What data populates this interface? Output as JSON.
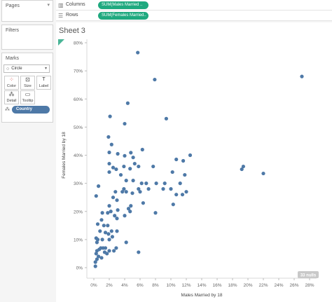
{
  "pages": {
    "title": "Pages"
  },
  "filters": {
    "title": "Filters"
  },
  "marks": {
    "title": "Marks",
    "mark_type": "Circle",
    "buttons": [
      {
        "label": "Color",
        "icon": "color-icon"
      },
      {
        "label": "Size",
        "icon": "size-icon"
      },
      {
        "label": "Label",
        "icon": "label-icon"
      },
      {
        "label": "Detail",
        "icon": "detail-icon"
      },
      {
        "label": "Tooltip",
        "icon": "tooltip-icon"
      }
    ],
    "detail_field": "Country"
  },
  "shelves": {
    "columns_label": "Columns",
    "columns_pill": "SUM(Males Married ..",
    "rows_label": "Rows",
    "rows_pill": "SUM(Females Married.."
  },
  "sheet": {
    "title": "Sheet 3",
    "nulls_badge": "33 nulls"
  },
  "colors": {
    "mark": "#4e79a7",
    "pill": "#1fa97f",
    "detail_pill": "#4e79a7"
  },
  "chart_data": {
    "type": "scatter",
    "xlabel": "Males Married by 18",
    "ylabel": "Females Married by 18",
    "xlim": [
      0,
      0.28
    ],
    "ylim": [
      0,
      0.8
    ],
    "x_ticks": [
      "0%",
      "2%",
      "4%",
      "6%",
      "8%",
      "10%",
      "12%",
      "14%",
      "16%",
      "18%",
      "20%",
      "22%",
      "24%",
      "26%",
      "28%"
    ],
    "y_ticks": [
      "0%",
      "10%",
      "20%",
      "30%",
      "40%",
      "50%",
      "60%",
      "70%",
      "80%"
    ],
    "grid": false,
    "points": [
      {
        "x": 0.057,
        "y": 0.765
      },
      {
        "x": 0.079,
        "y": 0.669
      },
      {
        "x": 0.27,
        "y": 0.68
      },
      {
        "x": 0.044,
        "y": 0.585
      },
      {
        "x": 0.094,
        "y": 0.53
      },
      {
        "x": 0.021,
        "y": 0.538
      },
      {
        "x": 0.04,
        "y": 0.512
      },
      {
        "x": 0.019,
        "y": 0.465
      },
      {
        "x": 0.023,
        "y": 0.438
      },
      {
        "x": 0.02,
        "y": 0.41
      },
      {
        "x": 0.048,
        "y": 0.409
      },
      {
        "x": 0.063,
        "y": 0.42
      },
      {
        "x": 0.031,
        "y": 0.405
      },
      {
        "x": 0.04,
        "y": 0.398
      },
      {
        "x": 0.051,
        "y": 0.392
      },
      {
        "x": 0.077,
        "y": 0.36
      },
      {
        "x": 0.058,
        "y": 0.36
      },
      {
        "x": 0.107,
        "y": 0.385
      },
      {
        "x": 0.116,
        "y": 0.38
      },
      {
        "x": 0.125,
        "y": 0.4
      },
      {
        "x": 0.194,
        "y": 0.36
      },
      {
        "x": 0.192,
        "y": 0.35
      },
      {
        "x": 0.22,
        "y": 0.335
      },
      {
        "x": 0.02,
        "y": 0.37
      },
      {
        "x": 0.025,
        "y": 0.356
      },
      {
        "x": 0.02,
        "y": 0.34
      },
      {
        "x": 0.029,
        "y": 0.35
      },
      {
        "x": 0.035,
        "y": 0.33
      },
      {
        "x": 0.039,
        "y": 0.36
      },
      {
        "x": 0.047,
        "y": 0.352
      },
      {
        "x": 0.053,
        "y": 0.37
      },
      {
        "x": 0.042,
        "y": 0.31
      },
      {
        "x": 0.051,
        "y": 0.31
      },
      {
        "x": 0.062,
        "y": 0.3
      },
      {
        "x": 0.068,
        "y": 0.3
      },
      {
        "x": 0.071,
        "y": 0.28
      },
      {
        "x": 0.081,
        "y": 0.3
      },
      {
        "x": 0.092,
        "y": 0.3
      },
      {
        "x": 0.102,
        "y": 0.34
      },
      {
        "x": 0.112,
        "y": 0.3
      },
      {
        "x": 0.118,
        "y": 0.33
      },
      {
        "x": 0.1,
        "y": 0.28
      },
      {
        "x": 0.09,
        "y": 0.28
      },
      {
        "x": 0.037,
        "y": 0.27
      },
      {
        "x": 0.039,
        "y": 0.28
      },
      {
        "x": 0.028,
        "y": 0.27
      },
      {
        "x": 0.025,
        "y": 0.25
      },
      {
        "x": 0.03,
        "y": 0.24
      },
      {
        "x": 0.042,
        "y": 0.27
      },
      {
        "x": 0.05,
        "y": 0.265
      },
      {
        "x": 0.058,
        "y": 0.28
      },
      {
        "x": 0.06,
        "y": 0.27
      },
      {
        "x": 0.006,
        "y": 0.29
      },
      {
        "x": 0.003,
        "y": 0.255
      },
      {
        "x": 0.107,
        "y": 0.26
      },
      {
        "x": 0.115,
        "y": 0.26
      },
      {
        "x": 0.12,
        "y": 0.27
      },
      {
        "x": 0.064,
        "y": 0.23
      },
      {
        "x": 0.103,
        "y": 0.225
      },
      {
        "x": 0.08,
        "y": 0.195
      },
      {
        "x": 0.045,
        "y": 0.21
      },
      {
        "x": 0.048,
        "y": 0.22
      },
      {
        "x": 0.047,
        "y": 0.2
      },
      {
        "x": 0.04,
        "y": 0.185
      },
      {
        "x": 0.031,
        "y": 0.205
      },
      {
        "x": 0.027,
        "y": 0.185
      },
      {
        "x": 0.02,
        "y": 0.22
      },
      {
        "x": 0.022,
        "y": 0.2
      },
      {
        "x": 0.018,
        "y": 0.195
      },
      {
        "x": 0.011,
        "y": 0.195
      },
      {
        "x": 0.01,
        "y": 0.17
      },
      {
        "x": 0.013,
        "y": 0.15
      },
      {
        "x": 0.018,
        "y": 0.15
      },
      {
        "x": 0.03,
        "y": 0.175
      },
      {
        "x": 0.005,
        "y": 0.155
      },
      {
        "x": 0.008,
        "y": 0.13
      },
      {
        "x": 0.015,
        "y": 0.125
      },
      {
        "x": 0.019,
        "y": 0.12
      },
      {
        "x": 0.023,
        "y": 0.13
      },
      {
        "x": 0.03,
        "y": 0.13
      },
      {
        "x": 0.003,
        "y": 0.105
      },
      {
        "x": 0.004,
        "y": 0.09
      },
      {
        "x": 0.005,
        "y": 0.1
      },
      {
        "x": 0.011,
        "y": 0.1
      },
      {
        "x": 0.02,
        "y": 0.1
      },
      {
        "x": 0.024,
        "y": 0.11
      },
      {
        "x": 0.042,
        "y": 0.09
      },
      {
        "x": 0.058,
        "y": 0.055
      },
      {
        "x": 0.029,
        "y": 0.07
      },
      {
        "x": 0.026,
        "y": 0.06
      },
      {
        "x": 0.02,
        "y": 0.06
      },
      {
        "x": 0.017,
        "y": 0.05
      },
      {
        "x": 0.015,
        "y": 0.07
      },
      {
        "x": 0.009,
        "y": 0.07
      },
      {
        "x": 0.007,
        "y": 0.065
      },
      {
        "x": 0.004,
        "y": 0.06
      },
      {
        "x": 0.003,
        "y": 0.05
      },
      {
        "x": 0.006,
        "y": 0.04
      },
      {
        "x": 0.01,
        "y": 0.035
      },
      {
        "x": 0.002,
        "y": 0.02
      },
      {
        "x": 0.002,
        "y": 0.005
      },
      {
        "x": 0.004,
        "y": 0.03
      },
      {
        "x": 0.012,
        "y": 0.07
      },
      {
        "x": 0.014,
        "y": 0.055
      }
    ]
  }
}
